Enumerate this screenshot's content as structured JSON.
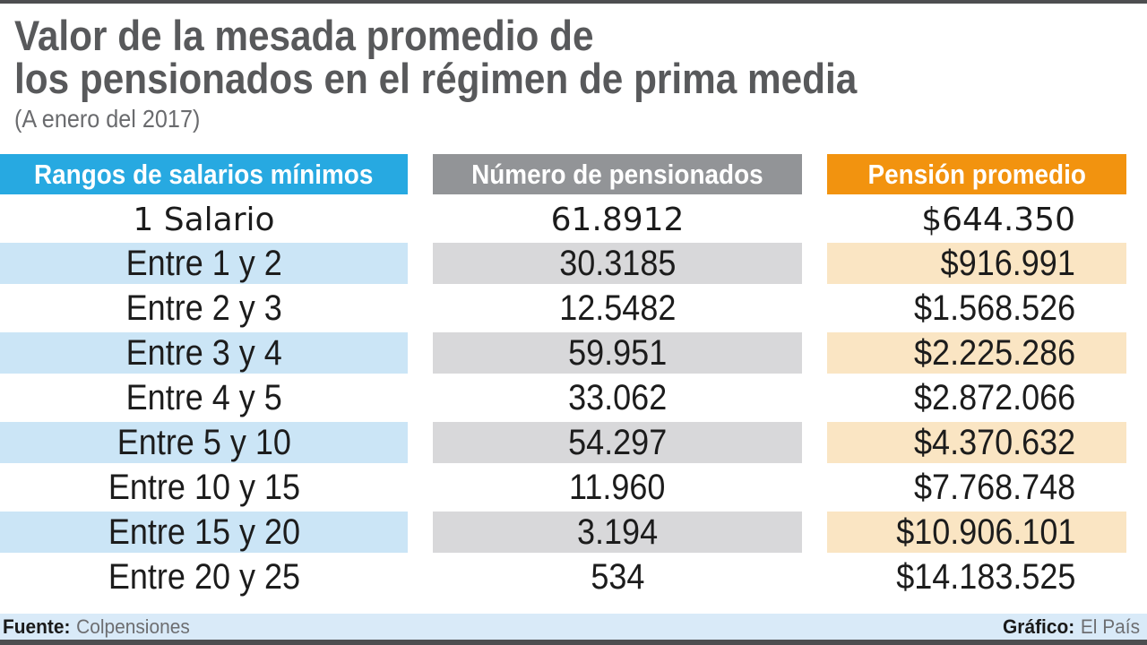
{
  "header": {
    "title_line1": "Valor de la mesada promedio de",
    "title_line2": "los pensionados en el régimen de prima media",
    "subtitle": "(A enero del 2017)"
  },
  "table": {
    "columns": [
      {
        "label": "Rangos de salarios mínimos",
        "color": "#27a9e1",
        "tint": "#cbe5f6"
      },
      {
        "label": "Número de pensionados",
        "color": "#929497",
        "tint": "#d8d8da"
      },
      {
        "label": "Pensión promedio",
        "color": "#f2930f",
        "tint": "#fae5c3"
      }
    ],
    "rows": [
      [
        "1 Salario",
        "61.8912",
        "$644.350"
      ],
      [
        "Entre 1 y 2",
        "30.3185",
        "$916.991"
      ],
      [
        "Entre 2 y 3",
        "12.5482",
        "$1.568.526"
      ],
      [
        "Entre 3 y 4",
        "59.951",
        "$2.225.286"
      ],
      [
        "Entre 4 y 5",
        "33.062",
        "$2.872.066"
      ],
      [
        "Entre 5 y 10",
        "54.297",
        "$4.370.632"
      ],
      [
        "Entre 10 y 15",
        "11.960",
        "$7.768.748"
      ],
      [
        "Entre 15 y 20",
        "3.194",
        "$10.906.101"
      ],
      [
        "Entre 20 y 25",
        "534",
        "$14.183.525"
      ]
    ]
  },
  "footer": {
    "source_label": "Fuente:",
    "source_value": "Colpensiones",
    "credit_label": "Gráfico:",
    "credit_value": "El País"
  },
  "colors": {
    "accent_blue": "#27a9e1",
    "accent_gray": "#929497",
    "accent_orange": "#f2930f",
    "row_blue": "#cbe5f6",
    "row_gray": "#d8d8da",
    "row_orange": "#fae5c3",
    "footer_bar": "#d9eaf8",
    "rule_dark": "#4d4e50",
    "title_text": "#58595b"
  },
  "chart_data": {
    "type": "table",
    "title": "Valor de la mesada promedio de los pensionados en el régimen de prima media",
    "subtitle": "(A enero del 2017)",
    "columns": [
      "Rangos de salarios mínimos",
      "Número de pensionados",
      "Pensión promedio"
    ],
    "rows": [
      [
        "1 Salario",
        "61.8912",
        "$644.350"
      ],
      [
        "Entre 1 y 2",
        "30.3185",
        "$916.991"
      ],
      [
        "Entre 2 y 3",
        "12.5482",
        "$1.568.526"
      ],
      [
        "Entre 3 y 4",
        "59.951",
        "$2.225.286"
      ],
      [
        "Entre 4 y 5",
        "33.062",
        "$2.872.066"
      ],
      [
        "Entre 5 y 10",
        "54.297",
        "$4.370.632"
      ],
      [
        "Entre 10 y 15",
        "11.960",
        "$7.768.748"
      ],
      [
        "Entre 15 y 20",
        "3.194",
        "$10.906.101"
      ],
      [
        "Entre 20 y 25",
        "534",
        "$14.183.525"
      ]
    ],
    "source": "Colpensiones",
    "credit": "El País"
  }
}
